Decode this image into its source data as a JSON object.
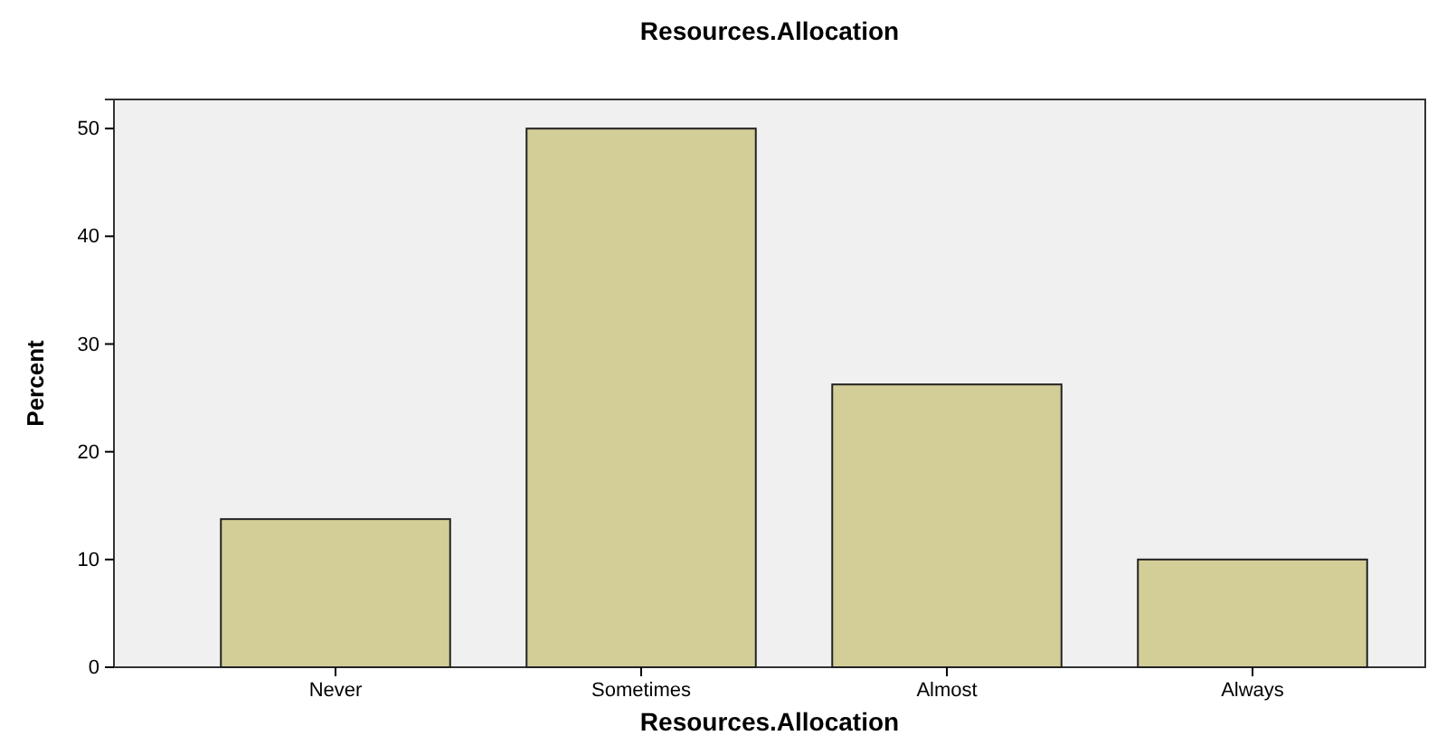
{
  "chart_data": {
    "type": "bar",
    "title": "Resources.Allocation",
    "xlabel": "Resources.Allocation",
    "ylabel": "Percent",
    "categories": [
      "Never",
      "Sometimes",
      "Almost",
      "Always"
    ],
    "values": [
      13.75,
      50,
      26.25,
      10
    ],
    "color": "#d3ce98",
    "ylim": [
      0,
      52.7
    ],
    "yticks": [
      0,
      10,
      20,
      30,
      40,
      50
    ],
    "grid": false
  }
}
